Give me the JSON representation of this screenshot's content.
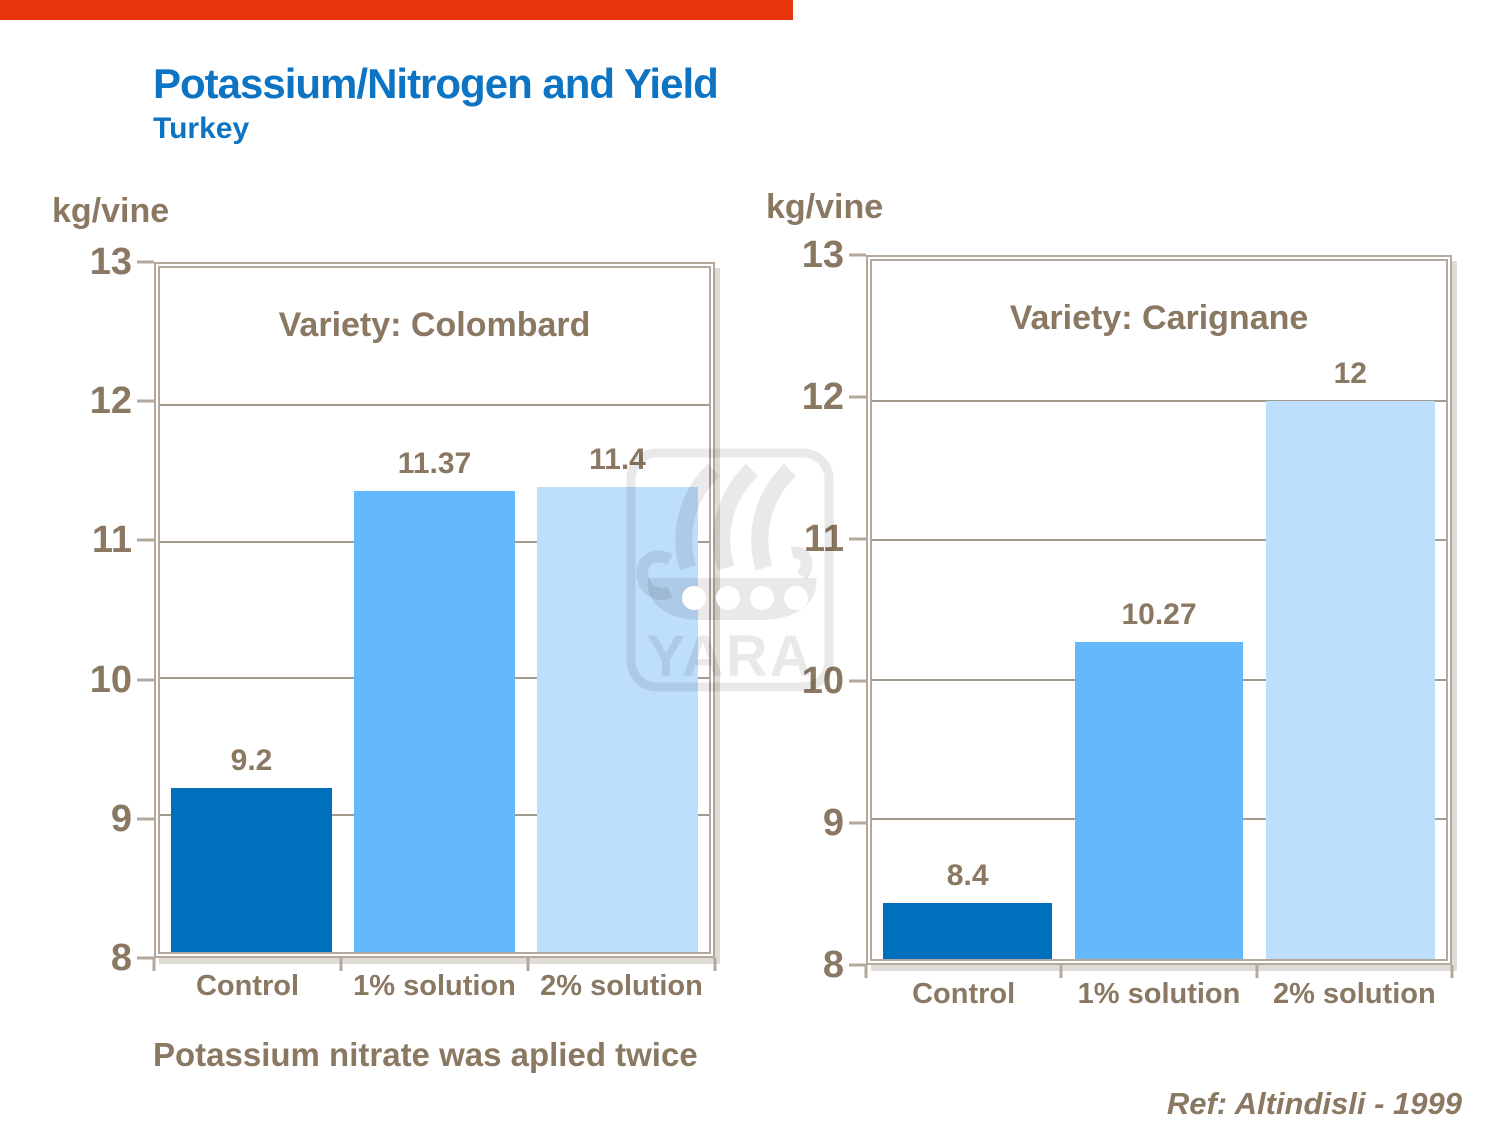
{
  "slide": {
    "title": "Potassium/Nitrogen and Yield",
    "subtitle": "Turkey",
    "note": "Potassium nitrate was aplied twice",
    "reference": "Ref: Altindisli - 1999"
  },
  "watermark": {
    "text": "YARA"
  },
  "colors": {
    "top_bar_red": "#e8350e",
    "title_blue": "#0d74c4",
    "text_brown": "#8a7862",
    "frame_tan": "#b3a89b",
    "gridline": "#a39a8e",
    "bar_control": "#0070bd",
    "bar_1pct": "#64b9fc",
    "bar_2pct": "#bedffc",
    "watermark_grey": "rgba(0,0,0,0.085)"
  },
  "chart_data": [
    {
      "type": "bar",
      "title": "Variety: Colombard",
      "unit_label": "kg/vine",
      "categories": [
        "Control",
        "1% solution",
        "2% solution"
      ],
      "values": [
        9.2,
        11.37,
        11.4
      ],
      "value_labels": [
        "9.2",
        "11.37",
        "11.4"
      ],
      "ylim": [
        8,
        13
      ],
      "ytick_step": 1,
      "grid": true,
      "legend": "none",
      "bar_colors": [
        "#0070bd",
        "#64b9fc",
        "#bedffc"
      ]
    },
    {
      "type": "bar",
      "title": "Variety: Carignane",
      "unit_label": "kg/vine",
      "categories": [
        "Control",
        "1% solution",
        "2% solution"
      ],
      "values": [
        8.4,
        10.27,
        12
      ],
      "value_labels": [
        "8.4",
        "10.27",
        "12"
      ],
      "ylim": [
        8,
        13
      ],
      "ytick_step": 1,
      "grid": true,
      "legend": "none",
      "bar_colors": [
        "#0070bd",
        "#64b9fc",
        "#bedffc"
      ]
    }
  ]
}
